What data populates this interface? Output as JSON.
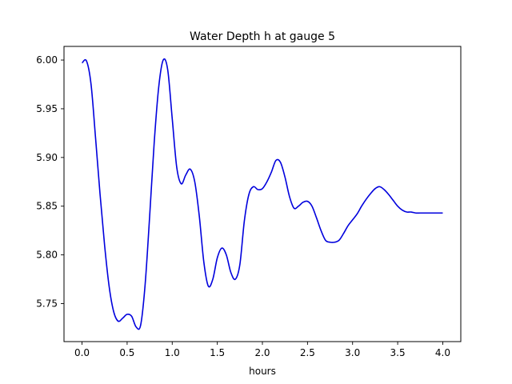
{
  "chart_data": {
    "type": "line",
    "title": "Water Depth h at gauge 5",
    "xlabel": "hours",
    "ylabel": "",
    "xlim": [
      -0.2,
      4.2
    ],
    "ylim": [
      5.711,
      6.014
    ],
    "xticks": [
      0.0,
      0.5,
      1.0,
      1.5,
      2.0,
      2.5,
      3.0,
      3.5,
      4.0
    ],
    "xtick_labels": [
      "0.0",
      "0.5",
      "1.0",
      "1.5",
      "2.0",
      "2.5",
      "3.0",
      "3.5",
      "4.0"
    ],
    "yticks": [
      5.75,
      5.8,
      5.85,
      5.9,
      5.95,
      6.0
    ],
    "ytick_labels": [
      "5.75",
      "5.80",
      "5.85",
      "5.90",
      "5.95",
      "6.00"
    ],
    "grid": false,
    "legend": "none",
    "series": [
      {
        "color": "#0000dd",
        "x": [
          0.0,
          0.05,
          0.1,
          0.15,
          0.2,
          0.25,
          0.3,
          0.35,
          0.4,
          0.45,
          0.5,
          0.55,
          0.6,
          0.65,
          0.7,
          0.75,
          0.8,
          0.85,
          0.9,
          0.95,
          1.0,
          1.05,
          1.1,
          1.15,
          1.2,
          1.25,
          1.3,
          1.35,
          1.4,
          1.45,
          1.5,
          1.55,
          1.6,
          1.65,
          1.7,
          1.75,
          1.8,
          1.85,
          1.9,
          1.95,
          2.0,
          2.05,
          2.1,
          2.15,
          2.2,
          2.25,
          2.3,
          2.35,
          2.4,
          2.45,
          2.5,
          2.55,
          2.6,
          2.65,
          2.7,
          2.75,
          2.8,
          2.85,
          2.9,
          2.95,
          3.0,
          3.05,
          3.1,
          3.15,
          3.2,
          3.25,
          3.3,
          3.35,
          3.4,
          3.45,
          3.5,
          3.55,
          3.6,
          3.65,
          3.7,
          3.75,
          3.8,
          3.85,
          3.9,
          3.95,
          4.0
        ],
        "y": [
          5.997,
          5.999,
          5.975,
          5.92,
          5.862,
          5.81,
          5.768,
          5.742,
          5.732,
          5.735,
          5.739,
          5.737,
          5.726,
          5.728,
          5.77,
          5.84,
          5.915,
          5.972,
          6.0,
          5.99,
          5.94,
          5.89,
          5.873,
          5.882,
          5.888,
          5.875,
          5.84,
          5.793,
          5.768,
          5.775,
          5.797,
          5.807,
          5.8,
          5.782,
          5.775,
          5.79,
          5.835,
          5.862,
          5.87,
          5.867,
          5.868,
          5.875,
          5.885,
          5.897,
          5.895,
          5.88,
          5.86,
          5.848,
          5.85,
          5.854,
          5.855,
          5.85,
          5.838,
          5.825,
          5.815,
          5.813,
          5.813,
          5.815,
          5.822,
          5.83,
          5.836,
          5.842,
          5.85,
          5.857,
          5.863,
          5.868,
          5.87,
          5.867,
          5.862,
          5.856,
          5.85,
          5.846,
          5.844,
          5.844,
          5.843,
          5.843,
          5.843,
          5.843,
          5.843,
          5.843,
          5.843
        ]
      }
    ]
  }
}
